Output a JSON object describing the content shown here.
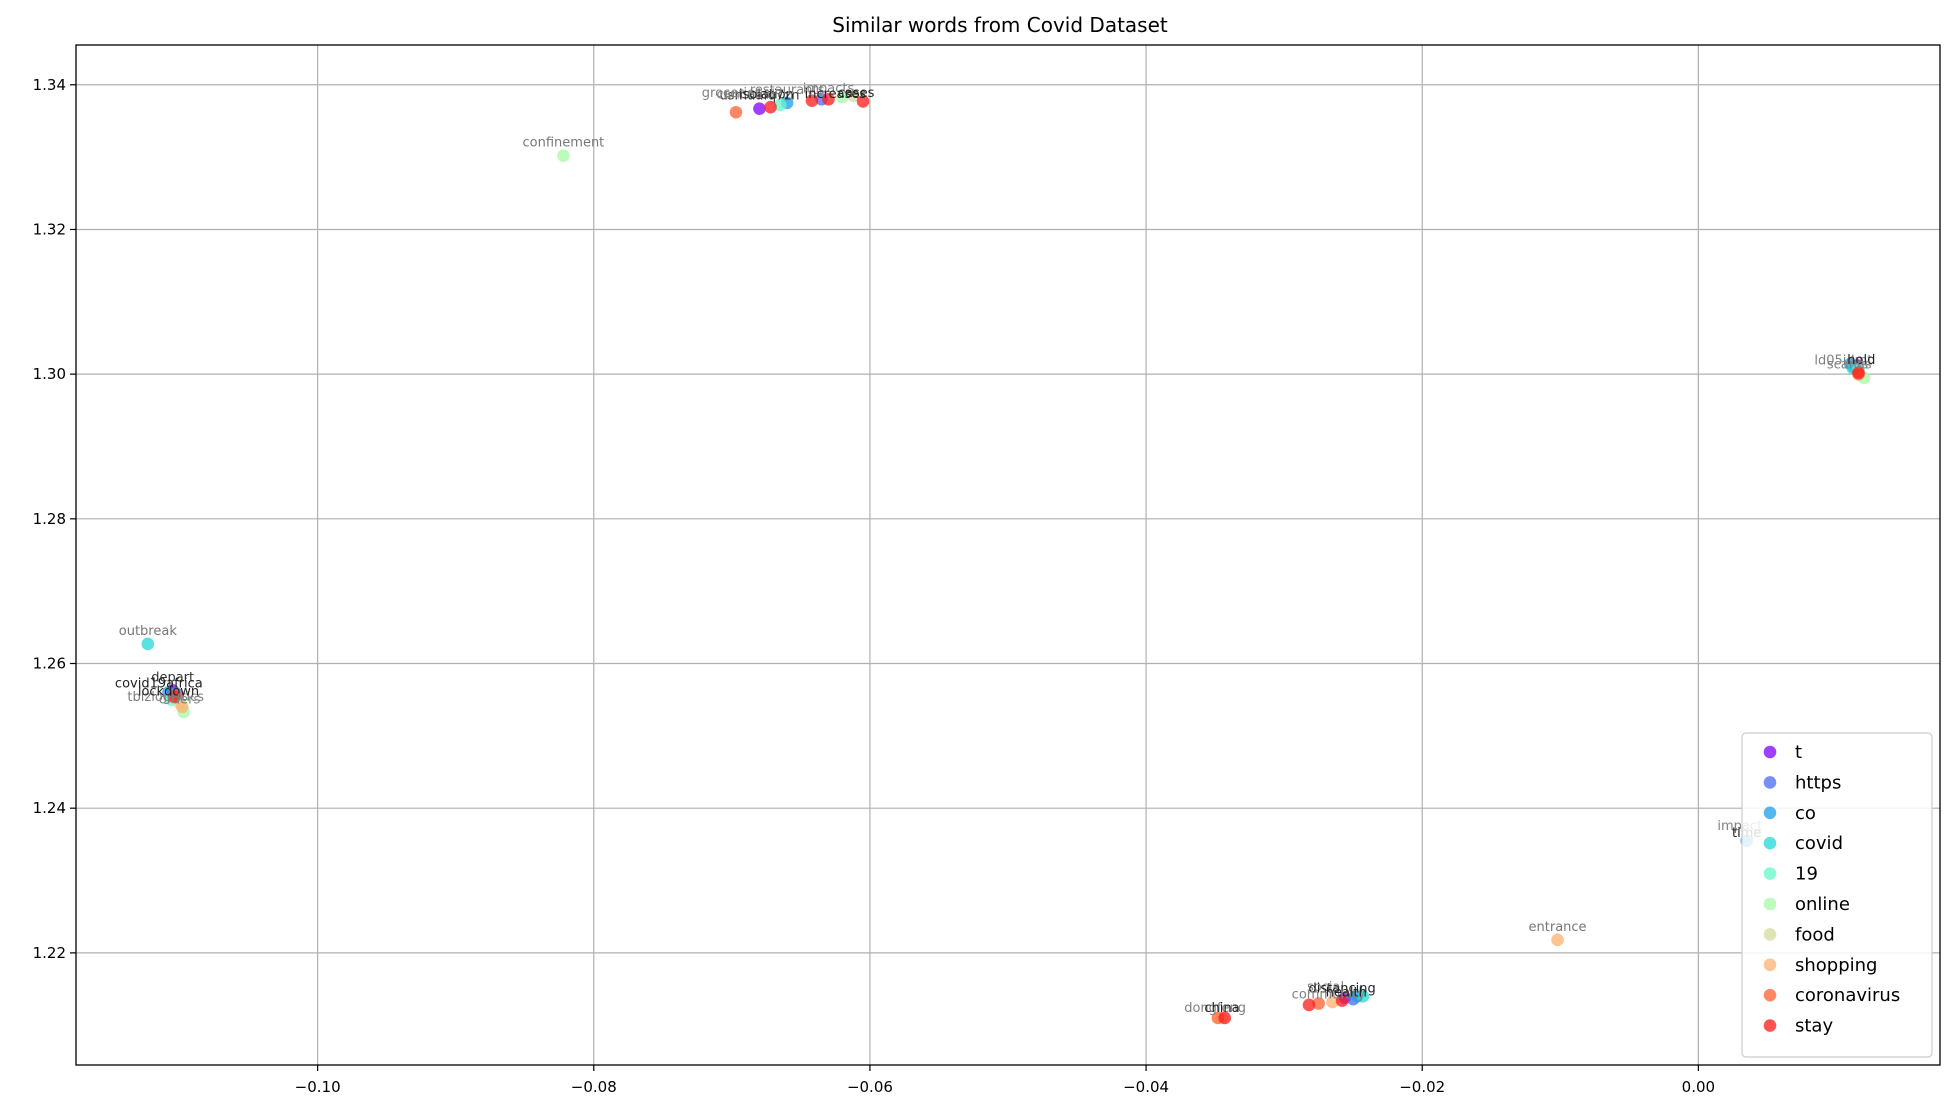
{
  "chart_data": {
    "type": "scatter",
    "title": "Similar words from Covid Dataset",
    "xlabel": "",
    "ylabel": "",
    "xlim": [
      -0.1175,
      0.0175
    ],
    "ylim": [
      1.2045,
      1.3455
    ],
    "xticks": [
      -0.1,
      -0.08,
      -0.06,
      -0.04,
      -0.02,
      0.0
    ],
    "xtick_labels": [
      "−0.10",
      "−0.08",
      "−0.06",
      "−0.04",
      "−0.02",
      "0.00"
    ],
    "yticks": [
      1.22,
      1.24,
      1.26,
      1.28,
      1.3,
      1.32,
      1.34
    ],
    "ytick_labels": [
      "1.22",
      "1.24",
      "1.26",
      "1.28",
      "1.30",
      "1.32",
      "1.34"
    ],
    "grid": true,
    "legend_position": "bottom-right",
    "series": [
      {
        "name": "t",
        "color": "#8000ff",
        "points": [
          {
            "x": -0.068,
            "y": 1.3367,
            "label": "usmuafq7zn",
            "show_label": true
          },
          {
            "x": -0.1105,
            "y": 1.2563,
            "label": "depart",
            "show_label": true
          },
          {
            "x": 0.0115,
            "y": 1.3012,
            "label": "",
            "show_label": false
          },
          {
            "x": -0.0256,
            "y": 1.2138,
            "label": "",
            "show_label": false
          }
        ]
      },
      {
        "name": "https",
        "color": "#4a6bf4",
        "points": [
          {
            "x": -0.0635,
            "y": 1.338,
            "label": "",
            "show_label": false
          },
          {
            "x": -0.1102,
            "y": 1.2558,
            "label": "",
            "show_label": false
          },
          {
            "x": 0.0113,
            "y": 1.301,
            "label": "",
            "show_label": false
          },
          {
            "x": -0.025,
            "y": 1.2136,
            "label": "",
            "show_label": false
          }
        ]
      },
      {
        "name": "co",
        "color": "#1a9ee6",
        "points": [
          {
            "x": -0.066,
            "y": 1.3375,
            "label": "",
            "show_label": false
          },
          {
            "x": -0.1108,
            "y": 1.256,
            "label": "",
            "show_label": false
          },
          {
            "x": 0.011,
            "y": 1.3014,
            "label": "",
            "show_label": false
          },
          {
            "x": -0.0247,
            "y": 1.214,
            "label": "",
            "show_label": false
          },
          {
            "x": 0.0035,
            "y": 1.2355,
            "label": "",
            "show_label": false
          }
        ]
      },
      {
        "name": "covid",
        "color": "#20d8d8",
        "points": [
          {
            "x": -0.1123,
            "y": 1.2627,
            "label": "outbreak",
            "show_label": true
          },
          {
            "x": -0.0243,
            "y": 1.214,
            "label": "",
            "show_label": false
          },
          {
            "x": 0.0112,
            "y": 1.3008,
            "label": "",
            "show_label": false
          }
        ]
      },
      {
        "name": "19",
        "color": "#64f8c8",
        "points": [
          {
            "x": -0.0665,
            "y": 1.3372,
            "label": "",
            "show_label": false
          },
          {
            "x": -0.1106,
            "y": 1.255,
            "label": "",
            "show_label": false
          },
          {
            "x": 0.0116,
            "y": 1.3006,
            "label": "",
            "show_label": false
          }
        ]
      },
      {
        "name": "online",
        "color": "#a4f9a4",
        "points": [
          {
            "x": -0.0822,
            "y": 1.3302,
            "label": "confinement",
            "show_label": true
          },
          {
            "x": -0.1097,
            "y": 1.2533,
            "label": "",
            "show_label": false
          },
          {
            "x": 0.012,
            "y": 1.2995,
            "label": "",
            "show_label": false
          },
          {
            "x": -0.062,
            "y": 1.3383,
            "label": "",
            "show_label": false
          }
        ]
      },
      {
        "name": "food",
        "color": "#d4d99c",
        "points": [
          {
            "x": -0.0612,
            "y": 1.3385,
            "label": "",
            "show_label": false
          },
          {
            "x": -0.11,
            "y": 1.2545,
            "label": "",
            "show_label": false
          },
          {
            "x": -0.0345,
            "y": 1.211,
            "label": "",
            "show_label": false
          }
        ]
      },
      {
        "name": "shopping",
        "color": "#ffb070",
        "points": [
          {
            "x": -0.0102,
            "y": 1.2218,
            "label": "entrance",
            "show_label": true
          },
          {
            "x": -0.1098,
            "y": 1.254,
            "label": "",
            "show_label": false
          },
          {
            "x": -0.0265,
            "y": 1.2132,
            "label": "",
            "show_label": false
          }
        ]
      },
      {
        "name": "coronavirus",
        "color": "#ff6030",
        "points": [
          {
            "x": -0.0697,
            "y": 1.3362,
            "label": "",
            "show_label": false
          },
          {
            "x": -0.1103,
            "y": 1.2556,
            "label": "",
            "show_label": false
          },
          {
            "x": 0.0116,
            "y": 1.3,
            "label": "",
            "show_label": false
          },
          {
            "x": -0.0348,
            "y": 1.211,
            "label": "",
            "show_label": false
          },
          {
            "x": -0.0275,
            "y": 1.213,
            "label": "",
            "show_label": false
          }
        ]
      },
      {
        "name": "stay",
        "color": "#ff1a1a",
        "points": [
          {
            "x": -0.0605,
            "y": 1.3377,
            "label": "",
            "show_label": false
          },
          {
            "x": -0.063,
            "y": 1.338,
            "label": "",
            "show_label": false
          },
          {
            "x": -0.0642,
            "y": 1.3378,
            "label": "",
            "show_label": false
          },
          {
            "x": -0.0672,
            "y": 1.3369,
            "label": "",
            "show_label": false
          },
          {
            "x": -0.1104,
            "y": 1.2554,
            "label": "",
            "show_label": false
          },
          {
            "x": 0.0116,
            "y": 1.3002,
            "label": "",
            "show_label": false
          },
          {
            "x": -0.0343,
            "y": 1.211,
            "label": "",
            "show_label": false
          },
          {
            "x": -0.0282,
            "y": 1.2128,
            "label": "",
            "show_label": false
          },
          {
            "x": -0.0258,
            "y": 1.2134,
            "label": "",
            "show_label": false
          }
        ]
      }
    ],
    "annotations": [
      {
        "text": "groceries",
        "x": -0.07,
        "y": 1.3383,
        "shade": "gray"
      },
      {
        "text": "canceled",
        "x": -0.069,
        "y": 1.3381,
        "shade": "gray"
      },
      {
        "text": "isolation",
        "x": -0.0675,
        "y": 1.3381,
        "shade": "dark"
      },
      {
        "text": "restaurants",
        "x": -0.066,
        "y": 1.3387,
        "shade": "gray"
      },
      {
        "text": "impacts",
        "x": -0.063,
        "y": 1.3389,
        "shade": "gray"
      },
      {
        "text": "increases",
        "x": -0.0625,
        "y": 1.3382,
        "shade": "dark"
      },
      {
        "text": "cases",
        "x": -0.061,
        "y": 1.3383,
        "shade": "dark"
      },
      {
        "text": "covid19africa",
        "x": -0.1115,
        "y": 1.2567,
        "shade": "dark"
      },
      {
        "text": "tbizlogistics",
        "x": -0.111,
        "y": 1.2548,
        "shade": "gray"
      },
      {
        "text": "lockdown",
        "x": -0.1108,
        "y": 1.2556,
        "shade": "dark"
      },
      {
        "text": "orders",
        "x": -0.11,
        "y": 1.2545,
        "shade": "gray"
      },
      {
        "text": "ld05idmt",
        "x": 0.0105,
        "y": 1.3013,
        "shade": "gray"
      },
      {
        "text": "scams",
        "x": 0.0108,
        "y": 1.3008,
        "shade": "gray"
      },
      {
        "text": "hold",
        "x": 0.0118,
        "y": 1.3014,
        "shade": "dark"
      },
      {
        "text": "ns",
        "x": 0.012,
        "y": 1.3008,
        "shade": "gray"
      },
      {
        "text": "impact",
        "x": 0.003,
        "y": 1.237,
        "shade": "gray"
      },
      {
        "text": "time",
        "x": 0.0035,
        "y": 1.236,
        "shade": "dark"
      },
      {
        "text": "dongfeng",
        "x": -0.035,
        "y": 1.2118,
        "shade": "gray"
      },
      {
        "text": "china",
        "x": -0.0345,
        "y": 1.2118,
        "shade": "dark"
      },
      {
        "text": "social",
        "x": -0.027,
        "y": 1.2147,
        "shade": "gray"
      },
      {
        "text": "distancing",
        "x": -0.0258,
        "y": 1.2145,
        "shade": "dark"
      },
      {
        "text": "community",
        "x": -0.0268,
        "y": 1.2137,
        "shade": "gray"
      },
      {
        "text": "health",
        "x": -0.0255,
        "y": 1.214,
        "shade": "dark"
      }
    ]
  }
}
